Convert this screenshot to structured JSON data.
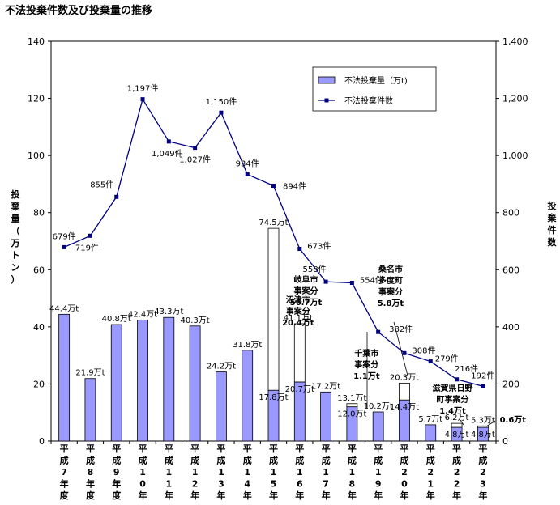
{
  "chart_data": {
    "type": "bar+line",
    "title": "不法投棄件数及び投棄量の推移",
    "categories": [
      "平成7年度",
      "平成8年度",
      "平成9年度",
      "平成10年",
      "平成11年",
      "平成12年",
      "平成13年",
      "平成14年",
      "平成15年",
      "平成16年",
      "平成17年",
      "平成18年",
      "平成19年",
      "平成20年",
      "平成21年",
      "平成22年",
      "平成23年"
    ],
    "category_chars": [
      [
        "平",
        "成",
        "7",
        "年",
        "度"
      ],
      [
        "平",
        "成",
        "8",
        "年",
        "度"
      ],
      [
        "平",
        "成",
        "9",
        "年",
        "度"
      ],
      [
        "平",
        "成",
        "1",
        "0",
        "年"
      ],
      [
        "平",
        "成",
        "1",
        "1",
        "年"
      ],
      [
        "平",
        "成",
        "1",
        "2",
        "年"
      ],
      [
        "平",
        "成",
        "1",
        "3",
        "年"
      ],
      [
        "平",
        "成",
        "1",
        "4",
        "年"
      ],
      [
        "平",
        "成",
        "1",
        "5",
        "年"
      ],
      [
        "平",
        "成",
        "1",
        "6",
        "年"
      ],
      [
        "平",
        "成",
        "1",
        "7",
        "年"
      ],
      [
        "平",
        "成",
        "1",
        "8",
        "年"
      ],
      [
        "平",
        "成",
        "1",
        "9",
        "年"
      ],
      [
        "平",
        "成",
        "2",
        "0",
        "年"
      ],
      [
        "平",
        "成",
        "2",
        "1",
        "年"
      ],
      [
        "平",
        "成",
        "2",
        "2",
        "年"
      ],
      [
        "平",
        "成",
        "2",
        "3",
        "年"
      ]
    ],
    "series": [
      {
        "name": "不法投棄量（万t)",
        "type": "bar",
        "axis": "left",
        "color": "#9999ff",
        "values": [
          44.4,
          21.9,
          40.8,
          42.4,
          43.3,
          40.3,
          24.2,
          31.8,
          17.8,
          20.7,
          17.2,
          12.0,
          10.2,
          14.4,
          5.7,
          4.8,
          4.8
        ],
        "totals": [
          44.4,
          21.9,
          40.8,
          42.4,
          43.3,
          40.3,
          24.2,
          31.8,
          74.5,
          41.1,
          17.2,
          13.1,
          10.2,
          20.3,
          5.7,
          6.2,
          5.3
        ],
        "labels": [
          "44.4万t",
          "21.9万t",
          "40.8万t",
          "42.4万t",
          "43.3万t",
          "40.3万t",
          "24.2万t",
          "31.8万t",
          "74.5万t",
          "41.1万t",
          "17.2万t",
          "13.1万t",
          "10.2万t",
          "20.3万t",
          "5.7万t",
          "6.2万t",
          "5.3万t"
        ],
        "inner_labels": {
          "8": "17.8万t",
          "9": "20.7万t",
          "11": "12.0万t",
          "13": "14.4万t",
          "15": "4.8万t",
          "16": "4.8万t"
        }
      },
      {
        "name": "不法投棄件数",
        "type": "line",
        "axis": "right",
        "color": "#000080",
        "values": [
          679,
          719,
          855,
          1197,
          1049,
          1027,
          1150,
          934,
          894,
          673,
          558,
          554,
          382,
          308,
          279,
          216,
          192
        ],
        "labels": [
          "679件",
          "719件",
          "855件",
          "1,197件",
          "1,049件",
          "1,027件",
          "1,150件",
          "934件",
          "894件",
          "673件",
          "558件",
          "554件",
          "382件",
          "308件",
          "279件",
          "216件",
          "192件"
        ]
      }
    ],
    "left_axis": {
      "label_chars": [
        "投",
        "棄",
        "量",
        "（",
        "万",
        "ト",
        "ン",
        "）"
      ],
      "ylim": [
        0,
        140
      ],
      "ticks": [
        "0",
        "20",
        "40",
        "60",
        "80",
        "100",
        "120",
        "140"
      ]
    },
    "right_axis": {
      "label_chars": [
        "投",
        "棄",
        "件",
        "数"
      ],
      "ylim": [
        0,
        1400
      ],
      "ticks": [
        "0",
        "200",
        "400",
        "600",
        "800",
        "1,000",
        "1,200",
        "1,400"
      ]
    },
    "annotations": [
      {
        "bar": 8,
        "lines": [
          "岐阜市",
          "事案分",
          "56.7万t"
        ]
      },
      {
        "bar": 9,
        "lines": [
          "沼津市",
          "事案分",
          "20.4万t"
        ]
      },
      {
        "bar": 11,
        "lines": [
          "千葉市",
          "事案分",
          "1.1万t"
        ]
      },
      {
        "bar": 13,
        "lines": [
          "桑名市",
          "多度町",
          "事案分",
          "5.8万t"
        ]
      },
      {
        "bar": 15,
        "lines": [
          "滋賀県日野",
          "町事案分",
          "1.4万t"
        ]
      },
      {
        "bar": 16,
        "lines": [
          "0.6万t"
        ]
      }
    ],
    "legend_position": "top-right",
    "grid": false
  }
}
